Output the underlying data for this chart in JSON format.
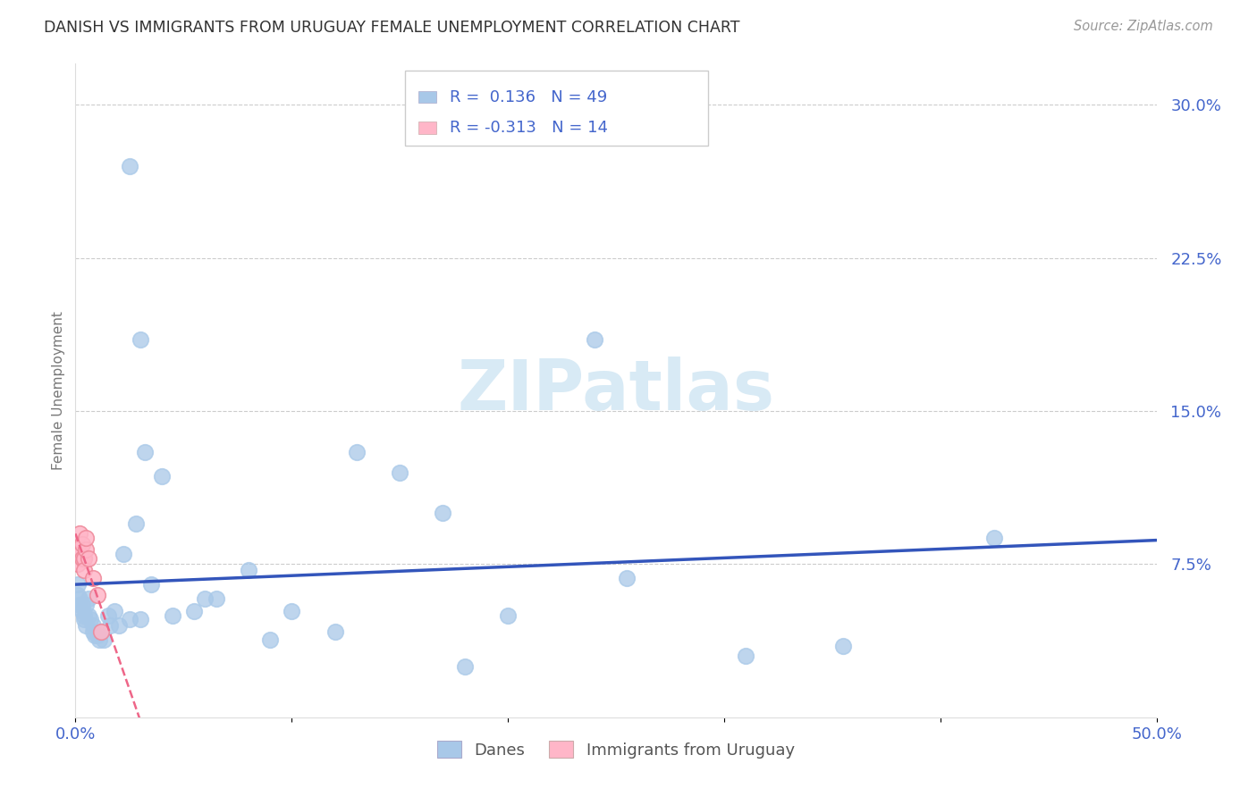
{
  "title": "DANISH VS IMMIGRANTS FROM URUGUAY FEMALE UNEMPLOYMENT CORRELATION CHART",
  "source": "Source: ZipAtlas.com",
  "ylabel": "Female Unemployment",
  "xlim": [
    0.0,
    0.5
  ],
  "ylim": [
    0.0,
    0.32
  ],
  "xticks": [
    0.0,
    0.1,
    0.2,
    0.3,
    0.4,
    0.5
  ],
  "xticklabels": [
    "0.0%",
    "",
    "",
    "",
    "",
    "50.0%"
  ],
  "yticks_right": [
    0.075,
    0.15,
    0.225,
    0.3
  ],
  "yticklabels_right": [
    "7.5%",
    "15.0%",
    "22.5%",
    "30.0%"
  ],
  "blue_color": "#A8C8E8",
  "pink_color": "#FFB6C8",
  "blue_line_color": "#3355BB",
  "pink_line_color": "#EE6688",
  "watermark_color": "#D8EAF5",
  "danes_label": "Danes",
  "immigrants_label": "Immigrants from Uruguay",
  "legend_text1": "R =  0.136   N = 49",
  "legend_text2": "R = -0.313   N = 14",
  "danes_x": [
    0.001,
    0.001,
    0.002,
    0.002,
    0.003,
    0.003,
    0.004,
    0.004,
    0.005,
    0.005,
    0.006,
    0.006,
    0.007,
    0.008,
    0.008,
    0.009,
    0.01,
    0.011,
    0.012,
    0.013,
    0.015,
    0.016,
    0.018,
    0.02,
    0.022,
    0.025,
    0.028,
    0.03,
    0.032,
    0.035,
    0.04,
    0.045,
    0.055,
    0.06,
    0.065,
    0.08,
    0.09,
    0.1,
    0.12,
    0.15,
    0.18,
    0.2,
    0.255,
    0.31,
    0.355,
    0.425,
    0.24,
    0.17,
    0.13
  ],
  "danes_y": [
    0.065,
    0.06,
    0.058,
    0.055,
    0.055,
    0.052,
    0.05,
    0.048,
    0.055,
    0.045,
    0.058,
    0.05,
    0.048,
    0.042,
    0.045,
    0.04,
    0.04,
    0.038,
    0.042,
    0.038,
    0.05,
    0.045,
    0.052,
    0.045,
    0.08,
    0.048,
    0.095,
    0.048,
    0.13,
    0.065,
    0.118,
    0.05,
    0.052,
    0.058,
    0.058,
    0.072,
    0.038,
    0.052,
    0.042,
    0.12,
    0.025,
    0.05,
    0.068,
    0.03,
    0.035,
    0.088,
    0.185,
    0.1,
    0.13
  ],
  "imm_x": [
    0.001,
    0.001,
    0.002,
    0.002,
    0.003,
    0.003,
    0.004,
    0.004,
    0.005,
    0.005,
    0.006,
    0.008,
    0.01,
    0.012
  ],
  "imm_y": [
    0.075,
    0.082,
    0.08,
    0.09,
    0.085,
    0.078,
    0.078,
    0.072,
    0.082,
    0.088,
    0.078,
    0.068,
    0.06,
    0.042
  ]
}
